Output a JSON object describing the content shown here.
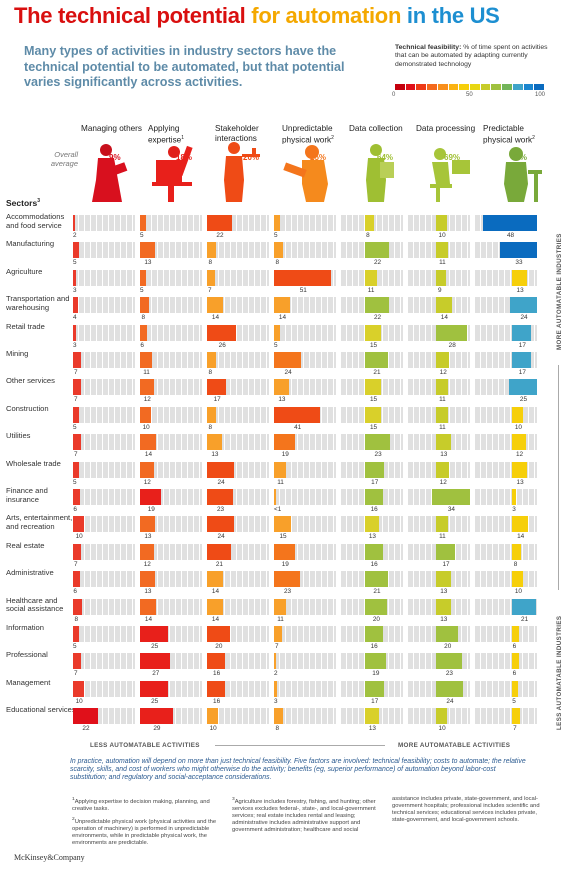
{
  "title": {
    "part1": "The technical potential ",
    "part2": "for automation ",
    "part3": "in the US",
    "color1": "#d90f0f",
    "color2": "#f4a800",
    "color3": "#1d8fd1"
  },
  "subtitle": "Many types of activities in industry sectors have the technical potential to be automated, but that potential varies significantly across activities.",
  "legend": {
    "bold": "Technical feasibility:",
    "text": " % of time spent on activities that can be automated by adapting currently demonstrated technology",
    "tick_0": "0",
    "tick_50": "50",
    "tick_100": "100",
    "scale_colors": [
      "#c4000d",
      "#e0101a",
      "#ee3a17",
      "#f4691d",
      "#f88f1c",
      "#fbb313",
      "#f6cf0a",
      "#e8d713",
      "#c7cc2a",
      "#a0c13f",
      "#73b55a",
      "#3fa4c9",
      "#1a86cf",
      "#0a6bbf"
    ]
  },
  "overall_label": "Overall average",
  "sectors_heading": "Sectors",
  "sectors_sup": "3",
  "columns": [
    {
      "name": "Managing others",
      "sup": "",
      "overall": "9%",
      "color": "#d8101e"
    },
    {
      "name": "Applying expertise",
      "sup": "1",
      "overall": "18%",
      "color": "#e8201b"
    },
    {
      "name": "Stakeholder interactions",
      "sup": "",
      "overall": "20%",
      "color": "#ef4b16"
    },
    {
      "name": "Unpredictable physical work",
      "sup": "2",
      "overall": "25%",
      "color": "#f4751c"
    },
    {
      "name": "Data collection",
      "sup": "",
      "overall": "64%",
      "color": "#9fbf33"
    },
    {
      "name": "Data processing",
      "sup": "",
      "overall": "69%",
      "color": "#9fbf33"
    },
    {
      "name": "Predictable physical work",
      "sup": "2",
      "overall": "78%",
      "color": "#79a93a"
    }
  ],
  "chart_data": {
    "type": "bar",
    "title": "The technical potential for automation in the US",
    "value_unit": "% of time spent on activity within sector",
    "categories": [
      "Accommodations and food service",
      "Manufacturing",
      "Agriculture",
      "Transportation and warehousing",
      "Retail trade",
      "Mining",
      "Other services",
      "Construction",
      "Utilities",
      "Wholesale trade",
      "Finance and insurance",
      "Arts, entertainment, and recreation",
      "Real estate",
      "Administrative",
      "Healthcare and social assistance",
      "Information",
      "Professional",
      "Management",
      "Educational services"
    ],
    "series": [
      {
        "name": "Managing others",
        "values": [
          2,
          5,
          3,
          4,
          3,
          7,
          7,
          5,
          7,
          5,
          6,
          10,
          7,
          6,
          8,
          5,
          7,
          10,
          22
        ],
        "labels": [
          "2",
          "5",
          "3",
          "4",
          "3",
          "7",
          "7",
          "5",
          "7",
          "5",
          "6",
          "10",
          "7",
          "6",
          "8",
          "5",
          "7",
          "10",
          "22"
        ]
      },
      {
        "name": "Applying expertise",
        "values": [
          5,
          13,
          5,
          8,
          6,
          11,
          12,
          10,
          14,
          12,
          19,
          13,
          12,
          13,
          14,
          25,
          27,
          25,
          29
        ],
        "labels": [
          "5",
          "13",
          "5",
          "8",
          "6",
          "11",
          "12",
          "10",
          "14",
          "12",
          "19",
          "13",
          "12",
          "13",
          "14",
          "25",
          "27",
          "25",
          "29"
        ]
      },
      {
        "name": "Stakeholder interactions",
        "values": [
          22,
          8,
          7,
          14,
          26,
          8,
          17,
          8,
          13,
          24,
          23,
          24,
          21,
          14,
          14,
          20,
          16,
          16,
          10
        ],
        "labels": [
          "22",
          "8",
          "7",
          "14",
          "26",
          "8",
          "17",
          "8",
          "13",
          "24",
          "23",
          "24",
          "21",
          "14",
          "14",
          "20",
          "16",
          "16",
          "10"
        ]
      },
      {
        "name": "Unpredictable physical work",
        "values": [
          5,
          8,
          51,
          14,
          5,
          24,
          13,
          41,
          19,
          11,
          0.5,
          15,
          19,
          23,
          11,
          7,
          2,
          3,
          8
        ],
        "labels": [
          "5",
          "8",
          "51",
          "14",
          "5",
          "24",
          "13",
          "41",
          "19",
          "11",
          "<1",
          "15",
          "19",
          "23",
          "11",
          "7",
          "2",
          "3",
          "8"
        ]
      },
      {
        "name": "Data collection",
        "values": [
          8,
          22,
          11,
          22,
          15,
          21,
          15,
          15,
          23,
          17,
          16,
          13,
          16,
          21,
          20,
          16,
          19,
          17,
          13
        ],
        "labels": [
          "8",
          "22",
          "11",
          "22",
          "15",
          "21",
          "15",
          "15",
          "23",
          "17",
          "16",
          "13",
          "16",
          "21",
          "20",
          "16",
          "19",
          "17",
          "13"
        ]
      },
      {
        "name": "Data processing",
        "values": [
          10,
          11,
          9,
          14,
          28,
          12,
          11,
          11,
          13,
          12,
          34,
          11,
          17,
          13,
          13,
          20,
          23,
          24,
          10
        ],
        "labels": [
          "10",
          "11",
          "9",
          "14",
          "28",
          "12",
          "11",
          "11",
          "13",
          "12",
          "34",
          "11",
          "17",
          "13",
          "13",
          "20",
          "23",
          "24",
          "10"
        ]
      },
      {
        "name": "Predictable physical work",
        "values": [
          48,
          33,
          13,
          24,
          17,
          17,
          25,
          10,
          12,
          13,
          3,
          14,
          8,
          10,
          21,
          6,
          6,
          5,
          7
        ],
        "labels": [
          "48",
          "33",
          "13",
          "24",
          "17",
          "17",
          "25",
          "10",
          "12",
          "13",
          "3",
          "14",
          "8",
          "10",
          "21",
          "6",
          "6",
          "5",
          "7"
        ]
      }
    ]
  },
  "axis": {
    "less": "LESS AUTOMATABLE ACTIVITIES",
    "more": "MORE AUTOMATABLE ACTIVITIES",
    "more_industries": "MORE AUTOMATABLE INDUSTRIES",
    "less_industries": "LESS AUTOMATABLE INDUSTRIES"
  },
  "note": "In practice, automation will depend on more than just technical feasibility. Five factors are involved: technical feasibility; costs to automate; the relative scarcity, skills, and cost of workers who might otherwise do the activity; benefits (eg, superior performance) of automation beyond labor-cost substitution; and regulatory and social-acceptance considerations.",
  "footnotes": {
    "f1": "Applying expertise to decision making, planning, and creative tasks.",
    "f2": "Unpredictable physical work (physical activities and the operation of machinery) is performed in unpredictable environments, while in predictable physical work, the environments are predictable.",
    "f3": "Agriculture includes forestry, fishing, and hunting; other services excludes federal-, state-, and local-government services; real estate includes rental and leasing; administrative includes administrative support and government administration; healthcare and social",
    "f4": "assistance includes private, state-government, and local-government hospitals; professional includes scientific and technical services; educational services includes private, state-government, and local-government schools."
  },
  "brand": "McKinsey&Company"
}
